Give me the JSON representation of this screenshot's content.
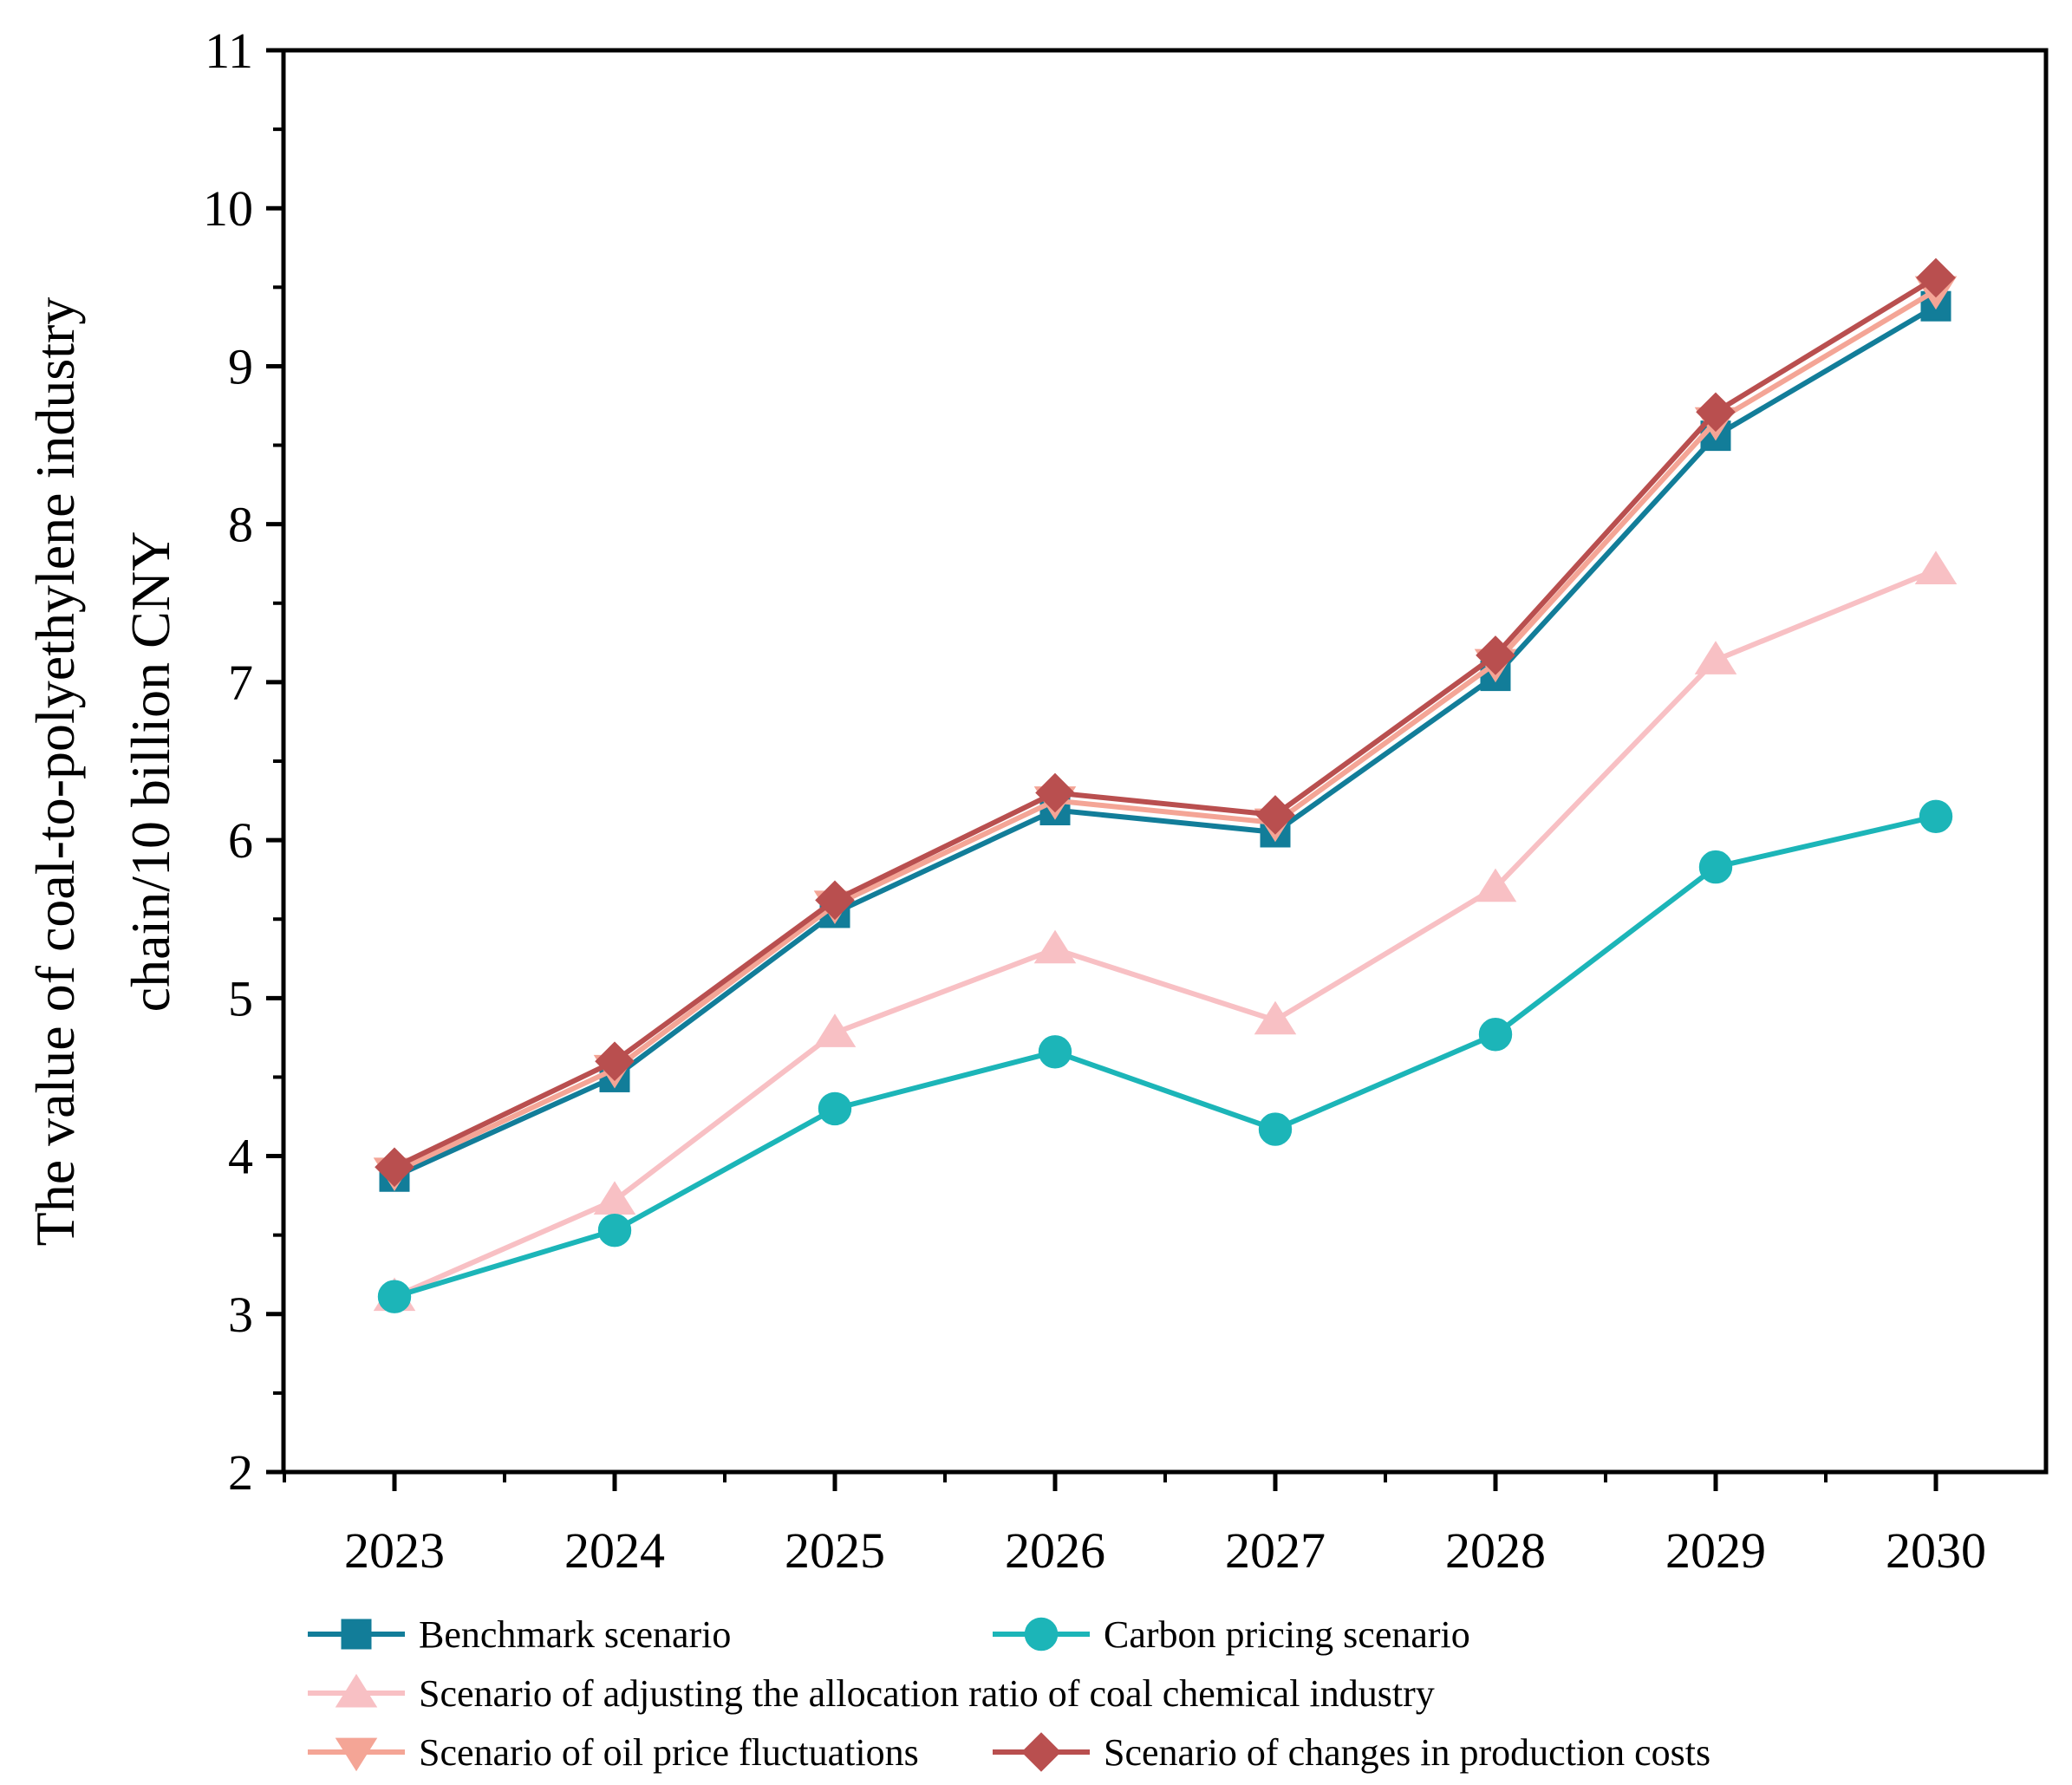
{
  "chart_data": {
    "type": "line",
    "title": "",
    "xlabel": "",
    "ylabel": [
      "The value of coal-to-polyethylene industry",
      "chain/10 billion CNY"
    ],
    "categories": [
      "2023",
      "2024",
      "2025",
      "2026",
      "2027",
      "2028",
      "2029",
      "2030"
    ],
    "ylim": [
      2,
      11
    ],
    "yticks": [
      "2",
      "3",
      "4",
      "5",
      "6",
      "7",
      "8",
      "9",
      "10",
      "11"
    ],
    "grid": false,
    "legend_position": "bottom",
    "series": [
      {
        "name": "Benchmark scenario",
        "color": "#127d99",
        "marker": "square",
        "values": [
          3.87,
          4.5,
          5.54,
          6.19,
          6.05,
          7.04,
          8.56,
          9.38
        ]
      },
      {
        "name": "Carbon pricing scenario",
        "color": "#1cb5b8",
        "marker": "circle",
        "values": [
          3.11,
          3.53,
          4.3,
          4.66,
          4.17,
          4.77,
          5.83,
          6.15
        ]
      },
      {
        "name": "Scenario of adjusting the allocation ratio of coal chemical industry",
        "color": "#f8c0c4",
        "marker": "triangle-up",
        "values": [
          3.11,
          3.72,
          4.78,
          5.31,
          4.86,
          5.7,
          7.14,
          7.71
        ]
      },
      {
        "name": "Scenario of oil price fluctuations",
        "color": "#f4a596",
        "marker": "triangle-down",
        "values": [
          3.9,
          4.55,
          5.59,
          6.25,
          6.11,
          7.12,
          8.65,
          9.48
        ]
      },
      {
        "name": "Scenario of changes in production costs",
        "color": "#b94f4f",
        "marker": "diamond",
        "values": [
          3.93,
          4.6,
          5.62,
          6.3,
          6.16,
          7.17,
          8.71,
          9.56
        ]
      }
    ]
  }
}
